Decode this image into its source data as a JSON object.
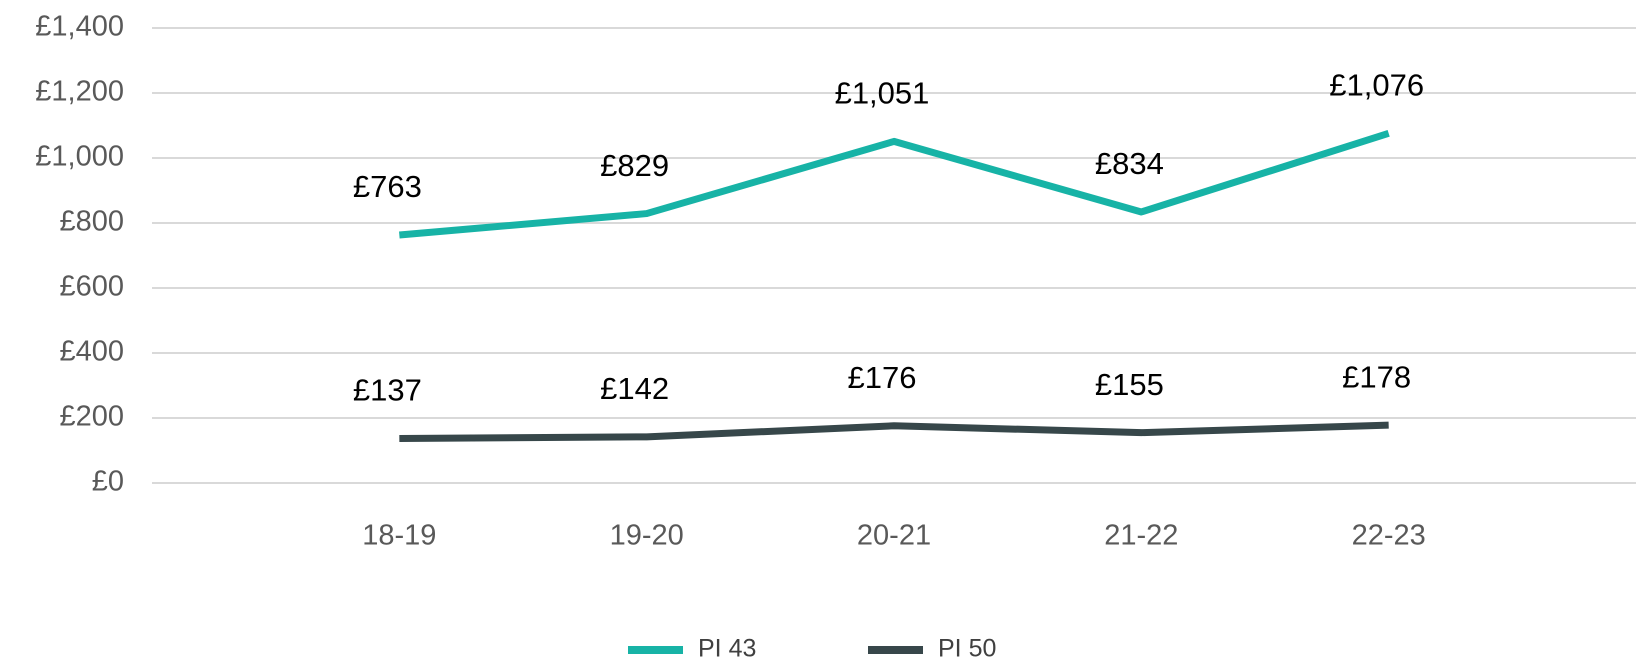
{
  "chart_data": {
    "type": "line",
    "categories": [
      "18-19",
      "19-20",
      "20-21",
      "21-22",
      "22-23"
    ],
    "series": [
      {
        "name": "PI 43",
        "color": "#17b3a6",
        "values": [
          763,
          829,
          1051,
          834,
          1076
        ],
        "value_labels": [
          "£763",
          "£829",
          "£1,051",
          "£834",
          "£1,076"
        ]
      },
      {
        "name": "PI 50",
        "color": "#37474a",
        "values": [
          137,
          142,
          176,
          155,
          178
        ],
        "value_labels": [
          "£137",
          "£142",
          "£176",
          "£155",
          "£178"
        ]
      }
    ],
    "ylim": [
      0,
      1400
    ],
    "yticks": [
      {
        "value": 0,
        "label": "£0"
      },
      {
        "value": 200,
        "label": "£200"
      },
      {
        "value": 400,
        "label": "£400"
      },
      {
        "value": 600,
        "label": "£600"
      },
      {
        "value": 800,
        "label": "£800"
      },
      {
        "value": 1000,
        "label": "£1,000"
      },
      {
        "value": 1200,
        "label": "£1,200"
      },
      {
        "value": 1400,
        "label": "£1,400"
      }
    ],
    "grid": true,
    "legend": "bottom"
  }
}
